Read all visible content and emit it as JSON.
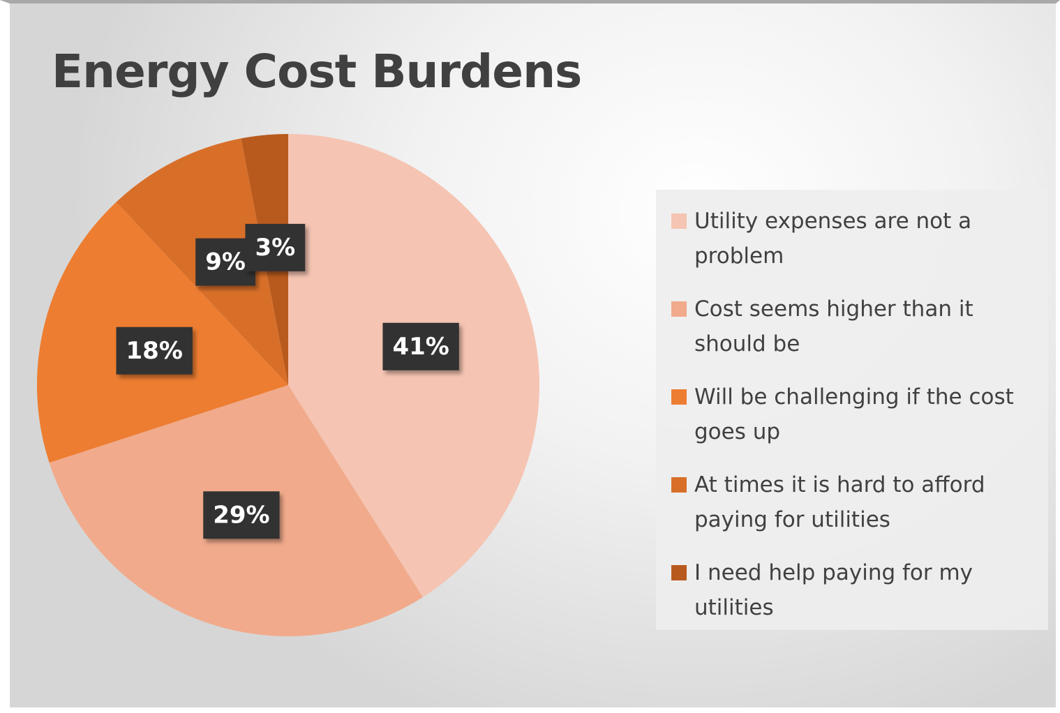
{
  "chart_data": {
    "type": "pie",
    "title": "Energy Cost Burdens",
    "categories": [
      "Utility expenses are not a problem",
      "Cost seems higher than it should be",
      "Will be challenging if the cost goes up",
      "At times it is hard to afford paying for utilities",
      "I need help paying for my utilities"
    ],
    "values": [
      41,
      29,
      18,
      9,
      3
    ],
    "value_labels": [
      "41%",
      "29%",
      "18%",
      "9%",
      "3%"
    ],
    "colors": [
      "#f5c4b2",
      "#f1aa8b",
      "#ed7d31",
      "#d86f29",
      "#b85a1e"
    ],
    "legend": "right"
  }
}
